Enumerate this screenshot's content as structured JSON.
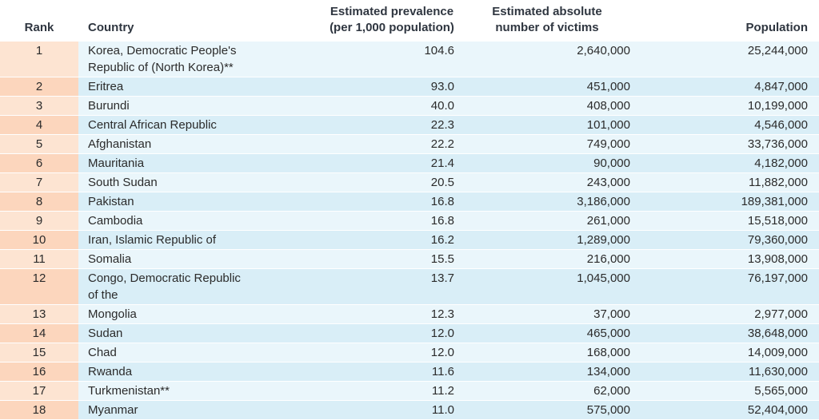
{
  "headers": {
    "rank": "Rank",
    "country": "Country",
    "prevalence_line1": "Estimated prevalence",
    "prevalence_line2": "(per 1,000 population)",
    "absolute_line1": "Estimated absolute",
    "absolute_line2": "number of victims",
    "population": "Population"
  },
  "rows": [
    {
      "rank": "1",
      "country_line1": "Korea, Democratic People's",
      "country_line2": "Republic of (North Korea)**",
      "prevalence": "104.6",
      "victims": "2,640,000",
      "population": "25,244,000"
    },
    {
      "rank": "2",
      "country_line1": "Eritrea",
      "country_line2": "",
      "prevalence": "93.0",
      "victims": "451,000",
      "population": "4,847,000"
    },
    {
      "rank": "3",
      "country_line1": "Burundi",
      "country_line2": "",
      "prevalence": "40.0",
      "victims": "408,000",
      "population": "10,199,000"
    },
    {
      "rank": "4",
      "country_line1": "Central African Republic",
      "country_line2": "",
      "prevalence": "22.3",
      "victims": "101,000",
      "population": "4,546,000"
    },
    {
      "rank": "5",
      "country_line1": "Afghanistan",
      "country_line2": "",
      "prevalence": "22.2",
      "victims": "749,000",
      "population": "33,736,000"
    },
    {
      "rank": "6",
      "country_line1": "Mauritania",
      "country_line2": "",
      "prevalence": "21.4",
      "victims": "90,000",
      "population": "4,182,000"
    },
    {
      "rank": "7",
      "country_line1": "South Sudan",
      "country_line2": "",
      "prevalence": "20.5",
      "victims": "243,000",
      "population": "11,882,000"
    },
    {
      "rank": "8",
      "country_line1": "Pakistan",
      "country_line2": "",
      "prevalence": "16.8",
      "victims": "3,186,000",
      "population": "189,381,000"
    },
    {
      "rank": "9",
      "country_line1": "Cambodia",
      "country_line2": "",
      "prevalence": "16.8",
      "victims": "261,000",
      "population": "15,518,000"
    },
    {
      "rank": "10",
      "country_line1": "Iran, Islamic Republic of",
      "country_line2": "",
      "prevalence": "16.2",
      "victims": "1,289,000",
      "population": "79,360,000"
    },
    {
      "rank": "11",
      "country_line1": "Somalia",
      "country_line2": "",
      "prevalence": "15.5",
      "victims": "216,000",
      "population": "13,908,000"
    },
    {
      "rank": "12",
      "country_line1": "Congo, Democratic Republic",
      "country_line2": "of the",
      "prevalence": "13.7",
      "victims": "1,045,000",
      "population": "76,197,000"
    },
    {
      "rank": "13",
      "country_line1": "Mongolia",
      "country_line2": "",
      "prevalence": "12.3",
      "victims": "37,000",
      "population": "2,977,000"
    },
    {
      "rank": "14",
      "country_line1": "Sudan",
      "country_line2": "",
      "prevalence": "12.0",
      "victims": "465,000",
      "population": "38,648,000"
    },
    {
      "rank": "15",
      "country_line1": "Chad",
      "country_line2": "",
      "prevalence": "12.0",
      "victims": "168,000",
      "population": "14,009,000"
    },
    {
      "rank": "16",
      "country_line1": "Rwanda",
      "country_line2": "",
      "prevalence": "11.6",
      "victims": "134,000",
      "population": "11,630,000"
    },
    {
      "rank": "17",
      "country_line1": "Turkmenistan**",
      "country_line2": "",
      "prevalence": "11.2",
      "victims": "62,000",
      "population": "5,565,000"
    },
    {
      "rank": "18",
      "country_line1": "Myanmar",
      "country_line2": "",
      "prevalence": "11.0",
      "victims": "575,000",
      "population": "52,404,000"
    }
  ]
}
